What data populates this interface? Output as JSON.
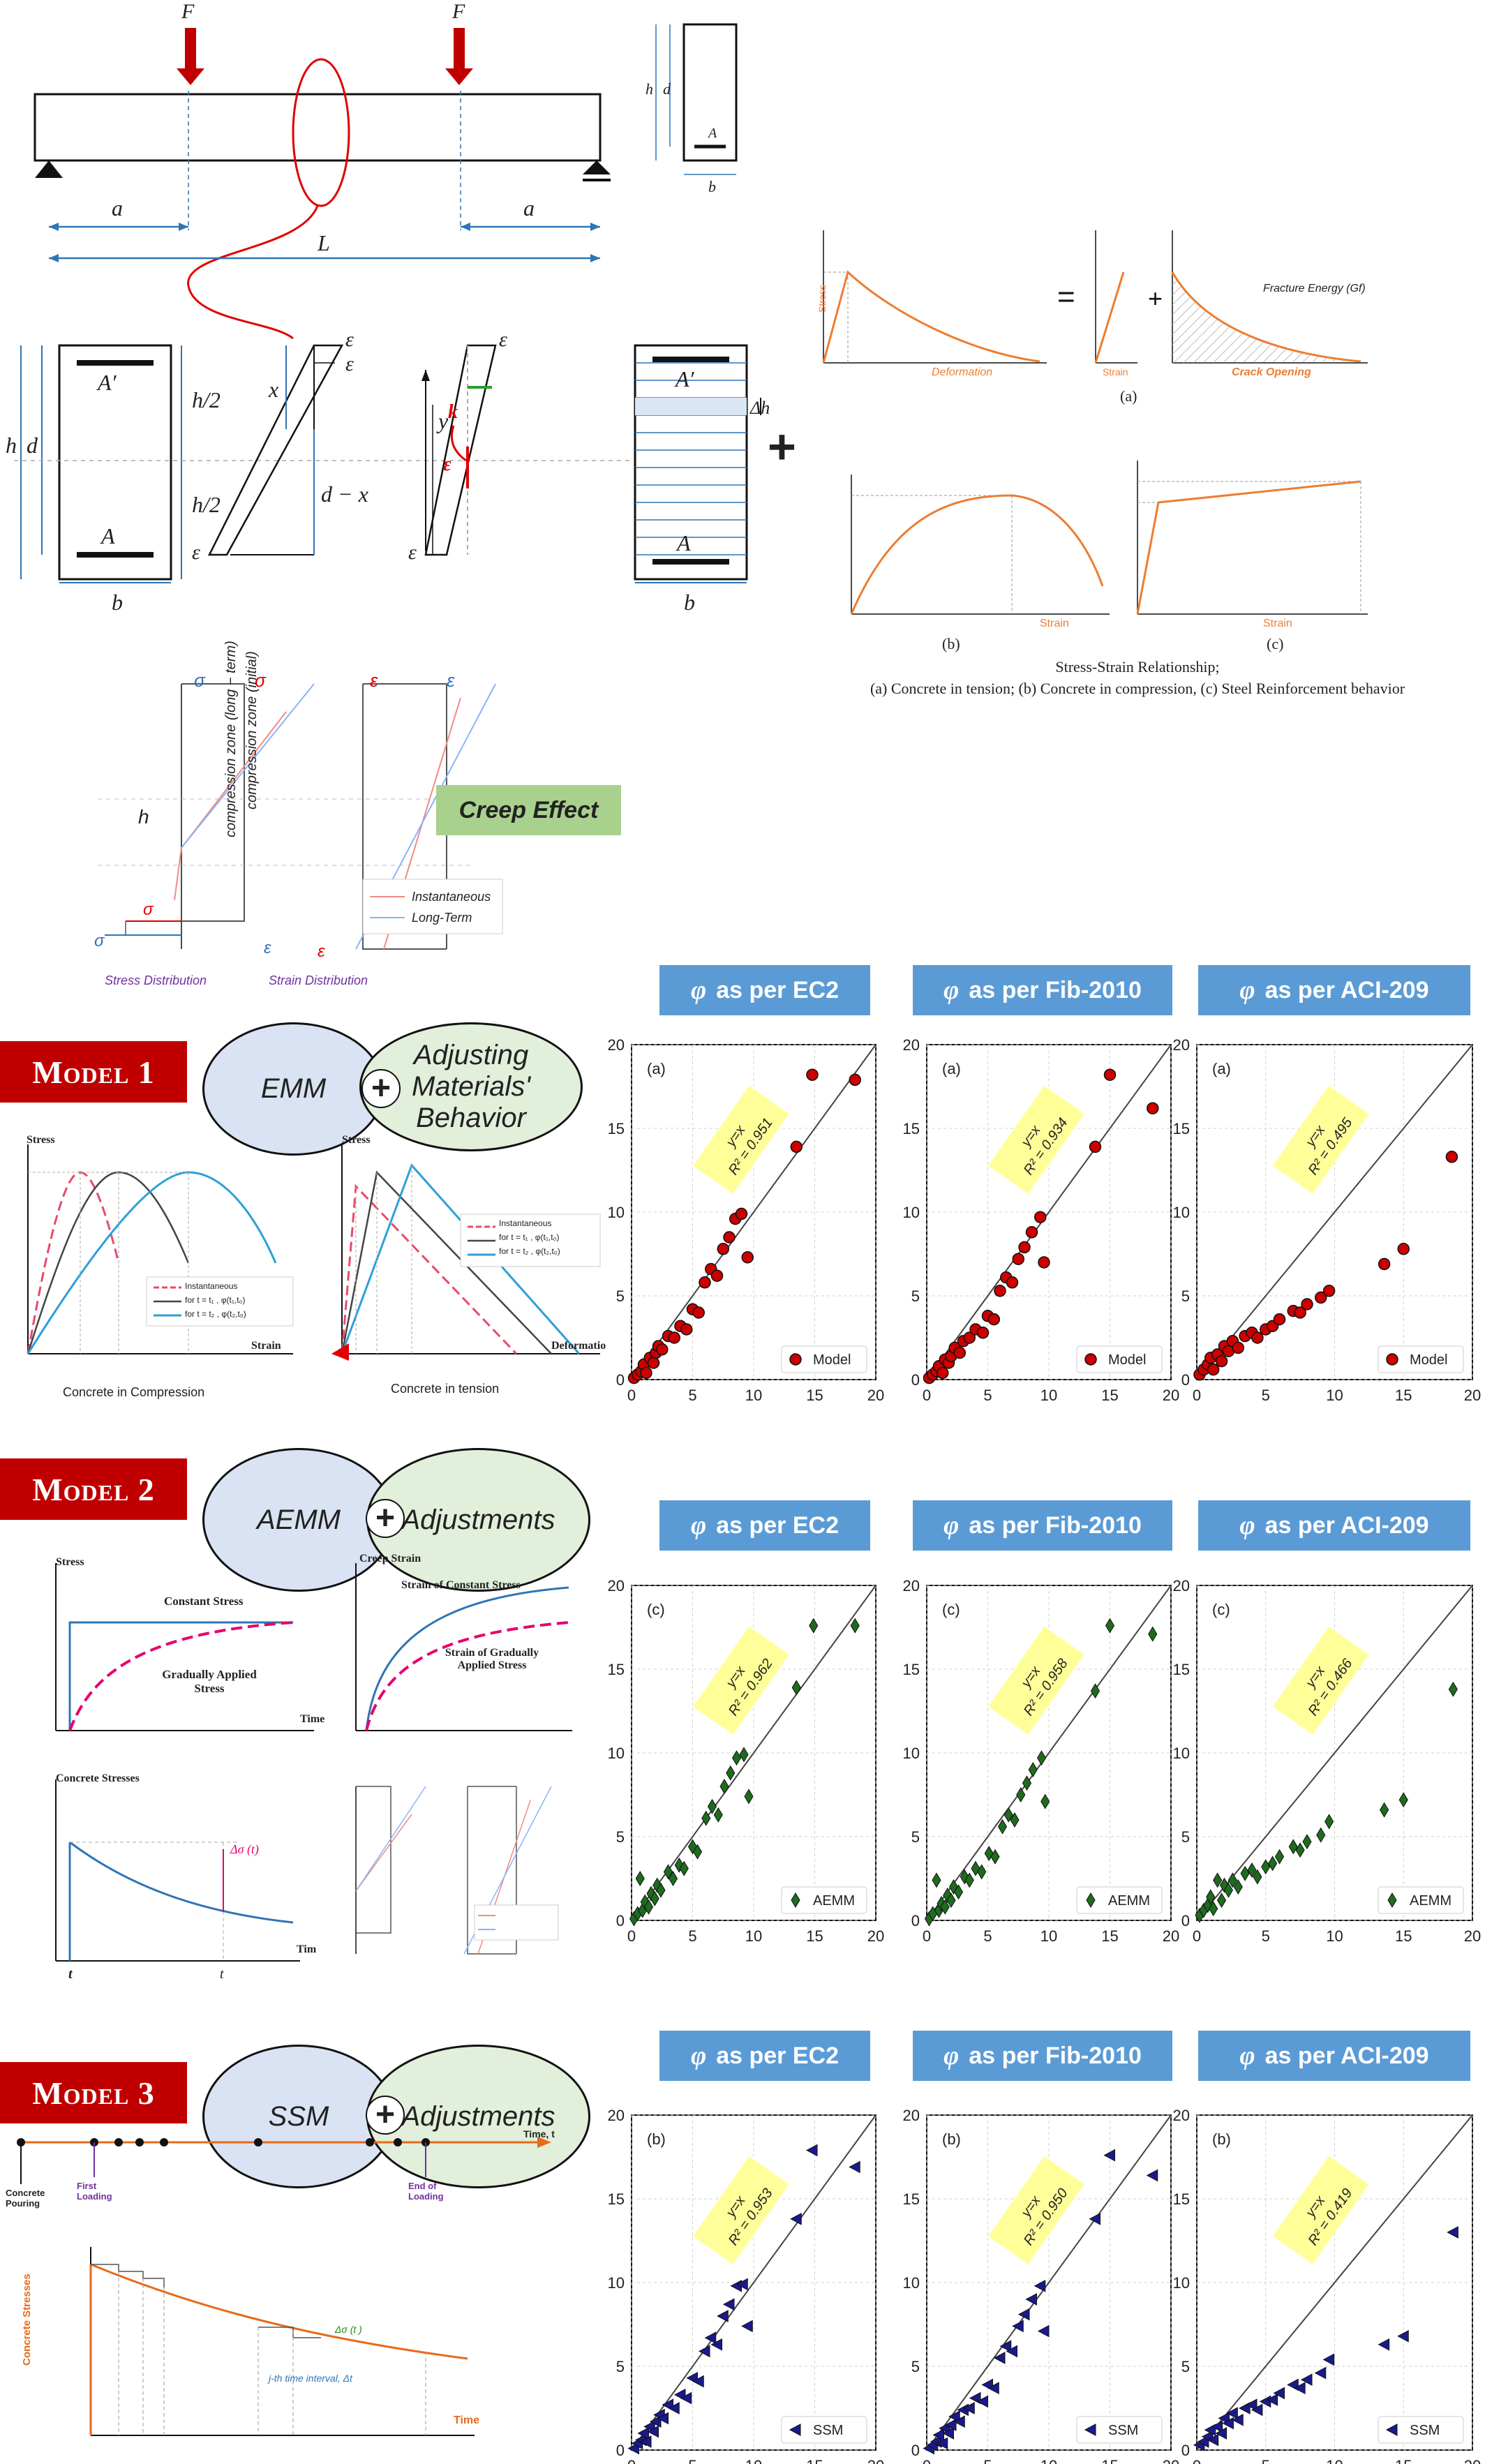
{
  "top": {
    "force_label": "F",
    "dim_a": "a",
    "dim_L": "L",
    "section_labels": {
      "h": "h",
      "d": "d",
      "b": "b",
      "ds": "d",
      "As": "A",
      "As_prime": "A′",
      "h2": "h/2",
      "x": "x",
      "d_minus_x": "d − x",
      "y": "y",
      "eps_c": "ε",
      "eps_s": "ε",
      "k": "k",
      "eps0": "ε",
      "dh": "Δh"
    },
    "material_panel": {
      "caption_title": "Stress-Strain Relationship;",
      "caption_sub": "(a) Concrete in tension; (b) Concrete in compression, (c) Steel Reinforcement behavior",
      "labels": {
        "a": "(a)",
        "b": "(b)",
        "c": "(c)",
        "stress": "Stress",
        "strain": "Strain",
        "deformation": "Deformation",
        "crack_opening": "Crack Opening",
        "fracture_energy": "Fracture Energy (Gf)",
        "fctm": "f",
        "sigma": "σ",
        "w": "w",
        "eps": "ε"
      }
    },
    "creep": {
      "box_label": "Creep Effect",
      "sigma_c_lt": "σ",
      "sigma_c0": "σ",
      "eps_c0": "ε",
      "eps_c_lt": "ε",
      "sigma_s0": "σ",
      "sigma_s_lt": "σ",
      "eps_s_lt": "ε",
      "eps_s0": "ε",
      "h": "h",
      "zone_long": "compression zone (long − term)",
      "zone_initial": "compression zone (initial)",
      "legend_inst": "Instantaneous",
      "legend_long": "Long-Term",
      "stress_dist": "Stress Distribution",
      "strain_dist": "Strain Distribution"
    }
  },
  "headers": {
    "phi": "φ",
    "ec2": "as per EC2",
    "fib": "as per Fib-2010",
    "aci": "as per ACI-209"
  },
  "models": [
    {
      "banner": "Model 1",
      "left_ellipse": "EMM",
      "right_ellipse": "Adjusting Materials' Behavior",
      "sub": {
        "compression_caption": "Concrete in Compression",
        "tension_caption": "Concrete in tension",
        "stress": "Stress",
        "strain": "Strain",
        "deformation": "Deformatio",
        "legend_inst": "Instantaneous",
        "legend_t1": "for t = t₁ , φ(t₁,t₀)",
        "legend_t2": "for t = t₂ , φ(t₂,t₀)"
      }
    },
    {
      "banner": "Model 2",
      "left_ellipse": "AEMM",
      "right_ellipse": "Adjustments",
      "sub": {
        "stress": "Stress",
        "constant_stress": "Constant Stress",
        "gradually_applied": "Gradually Applied Stress",
        "time": "Time",
        "creep_strain": "Creep Strain",
        "strain_constant": "Strain of Constant Stress",
        "strain_gradual": "Strain of Gradually Applied Stress",
        "concrete_stresses": "Concrete Stresses",
        "delta_sigma": "Δσ (t)",
        "t0": "t",
        "t": "t",
        "tim": "Tim"
      }
    },
    {
      "banner": "Model 3",
      "left_ellipse": "SSM",
      "right_ellipse": "Adjustments",
      "sub": {
        "time_t": "Time, t",
        "concrete_pouring": "Concrete Pouring",
        "first_loading": "First Loading",
        "end_loading": "End of Loading",
        "concrete_stresses": "Concrete Stresses",
        "time": "Time",
        "jth_interval": "j-th time interval, Δt",
        "delta_sigma": "Δσ (t )"
      }
    }
  ],
  "chart_data": [
    {
      "type": "scatter",
      "panel": "(a)",
      "model": "Model 1",
      "method": "EC2",
      "legend": "Model",
      "r2_label": "y=x",
      "r2": "R² = 0.951",
      "xlim": [
        0,
        20
      ],
      "ylim": [
        0,
        20
      ],
      "marker": "circle",
      "color": "#cc0000",
      "points": [
        [
          0.2,
          0.1
        ],
        [
          0.5,
          0.3
        ],
        [
          0.8,
          0.5
        ],
        [
          1.0,
          0.9
        ],
        [
          1.2,
          0.4
        ],
        [
          1.5,
          1.3
        ],
        [
          1.8,
          1.0
        ],
        [
          2.0,
          1.6
        ],
        [
          2.2,
          2.0
        ],
        [
          2.5,
          1.8
        ],
        [
          3.0,
          2.6
        ],
        [
          3.5,
          2.5
        ],
        [
          4.0,
          3.2
        ],
        [
          4.5,
          3.0
        ],
        [
          5.0,
          4.2
        ],
        [
          5.5,
          4.0
        ],
        [
          6.0,
          5.8
        ],
        [
          6.5,
          6.6
        ],
        [
          7.0,
          6.2
        ],
        [
          7.5,
          7.8
        ],
        [
          8.0,
          8.5
        ],
        [
          8.5,
          9.6
        ],
        [
          9.0,
          9.9
        ],
        [
          9.5,
          7.3
        ],
        [
          13.5,
          13.9
        ],
        [
          14.8,
          18.2
        ],
        [
          18.3,
          17.9
        ]
      ]
    },
    {
      "type": "scatter",
      "panel": "(a)",
      "model": "Model 1",
      "method": "Fib-2010",
      "legend": "Model",
      "r2_label": "y=x",
      "r2": "R² = 0.934",
      "xlim": [
        0,
        20
      ],
      "ylim": [
        0,
        20
      ],
      "marker": "circle",
      "color": "#cc0000",
      "points": [
        [
          0.2,
          0.1
        ],
        [
          0.5,
          0.3
        ],
        [
          0.8,
          0.5
        ],
        [
          1.0,
          0.8
        ],
        [
          1.3,
          0.4
        ],
        [
          1.5,
          1.2
        ],
        [
          1.8,
          1.0
        ],
        [
          2.0,
          1.4
        ],
        [
          2.3,
          1.9
        ],
        [
          2.7,
          1.6
        ],
        [
          3.0,
          2.3
        ],
        [
          3.5,
          2.5
        ],
        [
          4.0,
          3.0
        ],
        [
          4.6,
          2.8
        ],
        [
          5.0,
          3.8
        ],
        [
          5.5,
          3.6
        ],
        [
          6.0,
          5.3
        ],
        [
          6.5,
          6.1
        ],
        [
          7.0,
          5.8
        ],
        [
          7.5,
          7.2
        ],
        [
          8.0,
          7.9
        ],
        [
          8.6,
          8.8
        ],
        [
          9.3,
          9.7
        ],
        [
          9.6,
          7.0
        ],
        [
          13.8,
          13.9
        ],
        [
          15.0,
          18.2
        ],
        [
          18.5,
          16.2
        ]
      ]
    },
    {
      "type": "scatter",
      "panel": "(a)",
      "model": "Model 1",
      "method": "ACI-209",
      "legend": "Model",
      "r2_label": "y=x",
      "r2": "R² = 0.495",
      "xlim": [
        0,
        20
      ],
      "ylim": [
        0,
        20
      ],
      "marker": "circle",
      "color": "#cc0000",
      "points": [
        [
          0.2,
          0.3
        ],
        [
          0.5,
          0.6
        ],
        [
          0.8,
          0.9
        ],
        [
          1.0,
          1.3
        ],
        [
          1.2,
          0.6
        ],
        [
          1.5,
          1.5
        ],
        [
          1.8,
          1.1
        ],
        [
          2.0,
          2.0
        ],
        [
          2.3,
          1.7
        ],
        [
          2.6,
          2.3
        ],
        [
          3.0,
          1.9
        ],
        [
          3.5,
          2.6
        ],
        [
          4.0,
          2.8
        ],
        [
          4.4,
          2.5
        ],
        [
          5.0,
          3.0
        ],
        [
          5.5,
          3.2
        ],
        [
          6.0,
          3.6
        ],
        [
          7.0,
          4.1
        ],
        [
          7.5,
          4.0
        ],
        [
          8.0,
          4.5
        ],
        [
          9.0,
          4.9
        ],
        [
          9.6,
          5.3
        ],
        [
          13.6,
          6.9
        ],
        [
          15.0,
          7.8
        ],
        [
          18.5,
          13.3
        ]
      ]
    },
    {
      "type": "scatter",
      "panel": "(c)",
      "model": "Model 2",
      "method": "EC2",
      "legend": "AEMM",
      "r2_label": "y=x",
      "r2": "R² = 0.962",
      "xlim": [
        0,
        20
      ],
      "ylim": [
        0,
        20
      ],
      "marker": "diamond",
      "color": "#1e6b1e",
      "points": [
        [
          0.2,
          0.1
        ],
        [
          0.5,
          0.4
        ],
        [
          0.7,
          2.5
        ],
        [
          0.9,
          0.6
        ],
        [
          1.1,
          1.1
        ],
        [
          1.4,
          0.8
        ],
        [
          1.6,
          1.6
        ],
        [
          1.9,
          1.3
        ],
        [
          2.1,
          2.1
        ],
        [
          2.4,
          1.8
        ],
        [
          3.0,
          2.9
        ],
        [
          3.4,
          2.5
        ],
        [
          3.9,
          3.3
        ],
        [
          4.3,
          3.1
        ],
        [
          5.0,
          4.4
        ],
        [
          5.4,
          4.1
        ],
        [
          6.1,
          6.1
        ],
        [
          6.6,
          6.8
        ],
        [
          7.1,
          6.3
        ],
        [
          7.6,
          8.0
        ],
        [
          8.1,
          8.8
        ],
        [
          8.6,
          9.7
        ],
        [
          9.2,
          9.9
        ],
        [
          9.6,
          7.4
        ],
        [
          13.5,
          13.9
        ],
        [
          14.9,
          17.6
        ],
        [
          18.3,
          17.6
        ]
      ]
    },
    {
      "type": "scatter",
      "panel": "(c)",
      "model": "Model 2",
      "method": "Fib-2010",
      "legend": "AEMM",
      "r2_label": "y=x",
      "r2": "R² = 0.958",
      "xlim": [
        0,
        20
      ],
      "ylim": [
        0,
        20
      ],
      "marker": "diamond",
      "color": "#1e6b1e",
      "points": [
        [
          0.2,
          0.1
        ],
        [
          0.5,
          0.4
        ],
        [
          0.8,
          2.4
        ],
        [
          1.0,
          0.6
        ],
        [
          1.2,
          1.0
        ],
        [
          1.5,
          0.8
        ],
        [
          1.7,
          1.5
        ],
        [
          2.0,
          1.2
        ],
        [
          2.2,
          2.0
        ],
        [
          2.6,
          1.7
        ],
        [
          3.1,
          2.6
        ],
        [
          3.5,
          2.4
        ],
        [
          4.0,
          3.1
        ],
        [
          4.5,
          2.9
        ],
        [
          5.1,
          4.0
        ],
        [
          5.6,
          3.8
        ],
        [
          6.2,
          5.6
        ],
        [
          6.7,
          6.3
        ],
        [
          7.2,
          6.0
        ],
        [
          7.7,
          7.5
        ],
        [
          8.2,
          8.2
        ],
        [
          8.7,
          9.0
        ],
        [
          9.4,
          9.7
        ],
        [
          9.7,
          7.1
        ],
        [
          13.8,
          13.7
        ],
        [
          15.0,
          17.6
        ],
        [
          18.5,
          17.1
        ]
      ]
    },
    {
      "type": "scatter",
      "panel": "(c)",
      "model": "Model 2",
      "method": "ACI-209",
      "legend": "AEMM",
      "r2_label": "y=x",
      "r2": "R² = 0.466",
      "xlim": [
        0,
        20
      ],
      "ylim": [
        0,
        20
      ],
      "marker": "diamond",
      "color": "#1e6b1e",
      "points": [
        [
          0.2,
          0.3
        ],
        [
          0.5,
          0.6
        ],
        [
          0.8,
          0.9
        ],
        [
          1.0,
          1.4
        ],
        [
          1.2,
          0.7
        ],
        [
          1.5,
          2.4
        ],
        [
          1.8,
          1.2
        ],
        [
          2.0,
          2.1
        ],
        [
          2.3,
          1.8
        ],
        [
          2.6,
          2.4
        ],
        [
          3.0,
          2.0
        ],
        [
          3.5,
          2.8
        ],
        [
          4.0,
          3.0
        ],
        [
          4.4,
          2.6
        ],
        [
          5.0,
          3.2
        ],
        [
          5.5,
          3.4
        ],
        [
          6.0,
          3.8
        ],
        [
          7.0,
          4.4
        ],
        [
          7.5,
          4.2
        ],
        [
          8.0,
          4.7
        ],
        [
          9.0,
          5.1
        ],
        [
          9.6,
          5.9
        ],
        [
          13.6,
          6.6
        ],
        [
          15.0,
          7.2
        ],
        [
          18.6,
          13.8
        ]
      ]
    },
    {
      "type": "scatter",
      "panel": "(b)",
      "model": "Model 3",
      "method": "EC2",
      "legend": "SSM",
      "r2_label": "y=x",
      "r2": "R² = 0.953",
      "xlim": [
        0,
        20
      ],
      "ylim": [
        0,
        20
      ],
      "marker": "triangle-left",
      "color": "#1a1a8c",
      "points": [
        [
          0.2,
          0.1
        ],
        [
          0.5,
          0.4
        ],
        [
          0.8,
          0.6
        ],
        [
          1.0,
          1.0
        ],
        [
          1.2,
          0.5
        ],
        [
          1.5,
          1.4
        ],
        [
          1.8,
          1.1
        ],
        [
          2.0,
          1.7
        ],
        [
          2.3,
          2.1
        ],
        [
          2.6,
          1.9
        ],
        [
          3.0,
          2.7
        ],
        [
          3.5,
          2.5
        ],
        [
          4.0,
          3.3
        ],
        [
          4.5,
          3.1
        ],
        [
          5.0,
          4.3
        ],
        [
          5.5,
          4.1
        ],
        [
          6.0,
          5.9
        ],
        [
          6.5,
          6.7
        ],
        [
          7.0,
          6.3
        ],
        [
          7.5,
          8.0
        ],
        [
          8.0,
          8.7
        ],
        [
          8.6,
          9.8
        ],
        [
          9.1,
          9.9
        ],
        [
          9.5,
          7.4
        ],
        [
          13.5,
          13.8
        ],
        [
          14.8,
          17.9
        ],
        [
          18.3,
          16.9
        ]
      ]
    },
    {
      "type": "scatter",
      "panel": "(b)",
      "model": "Model 3",
      "method": "Fib-2010",
      "legend": "SSM",
      "r2_label": "y=x",
      "r2": "R² = 0.950",
      "xlim": [
        0,
        20
      ],
      "ylim": [
        0,
        20
      ],
      "marker": "triangle-left",
      "color": "#1a1a8c",
      "points": [
        [
          0.2,
          0.1
        ],
        [
          0.5,
          0.3
        ],
        [
          0.8,
          0.5
        ],
        [
          1.0,
          0.9
        ],
        [
          1.3,
          0.4
        ],
        [
          1.5,
          1.3
        ],
        [
          1.8,
          1.0
        ],
        [
          2.0,
          1.5
        ],
        [
          2.3,
          2.0
        ],
        [
          2.7,
          1.7
        ],
        [
          3.0,
          2.4
        ],
        [
          3.5,
          2.5
        ],
        [
          4.0,
          3.1
        ],
        [
          4.6,
          2.9
        ],
        [
          5.0,
          3.9
        ],
        [
          5.5,
          3.7
        ],
        [
          6.0,
          5.5
        ],
        [
          6.5,
          6.2
        ],
        [
          7.0,
          5.9
        ],
        [
          7.5,
          7.4
        ],
        [
          8.0,
          8.1
        ],
        [
          8.6,
          9.0
        ],
        [
          9.3,
          9.8
        ],
        [
          9.6,
          7.1
        ],
        [
          13.8,
          13.8
        ],
        [
          15.0,
          17.6
        ],
        [
          18.5,
          16.4
        ]
      ]
    },
    {
      "type": "scatter",
      "panel": "(b)",
      "model": "Model 3",
      "method": "ACI-209",
      "legend": "SSM",
      "r2_label": "y=x",
      "r2": "R² = 0.419",
      "xlim": [
        0,
        20
      ],
      "ylim": [
        0,
        20
      ],
      "marker": "triangle-left",
      "color": "#1a1a8c",
      "points": [
        [
          0.2,
          0.3
        ],
        [
          0.5,
          0.5
        ],
        [
          0.8,
          0.8
        ],
        [
          1.0,
          1.2
        ],
        [
          1.2,
          0.6
        ],
        [
          1.5,
          1.4
        ],
        [
          1.8,
          1.0
        ],
        [
          2.0,
          1.9
        ],
        [
          2.3,
          1.6
        ],
        [
          2.6,
          2.2
        ],
        [
          3.0,
          1.8
        ],
        [
          3.5,
          2.5
        ],
        [
          4.0,
          2.7
        ],
        [
          4.4,
          2.4
        ],
        [
          5.0,
          2.9
        ],
        [
          5.5,
          3.0
        ],
        [
          6.0,
          3.4
        ],
        [
          7.0,
          3.9
        ],
        [
          7.5,
          3.7
        ],
        [
          8.0,
          4.2
        ],
        [
          9.0,
          4.6
        ],
        [
          9.6,
          5.4
        ],
        [
          13.6,
          6.3
        ],
        [
          15.0,
          6.8
        ],
        [
          18.6,
          13.0
        ]
      ]
    }
  ]
}
